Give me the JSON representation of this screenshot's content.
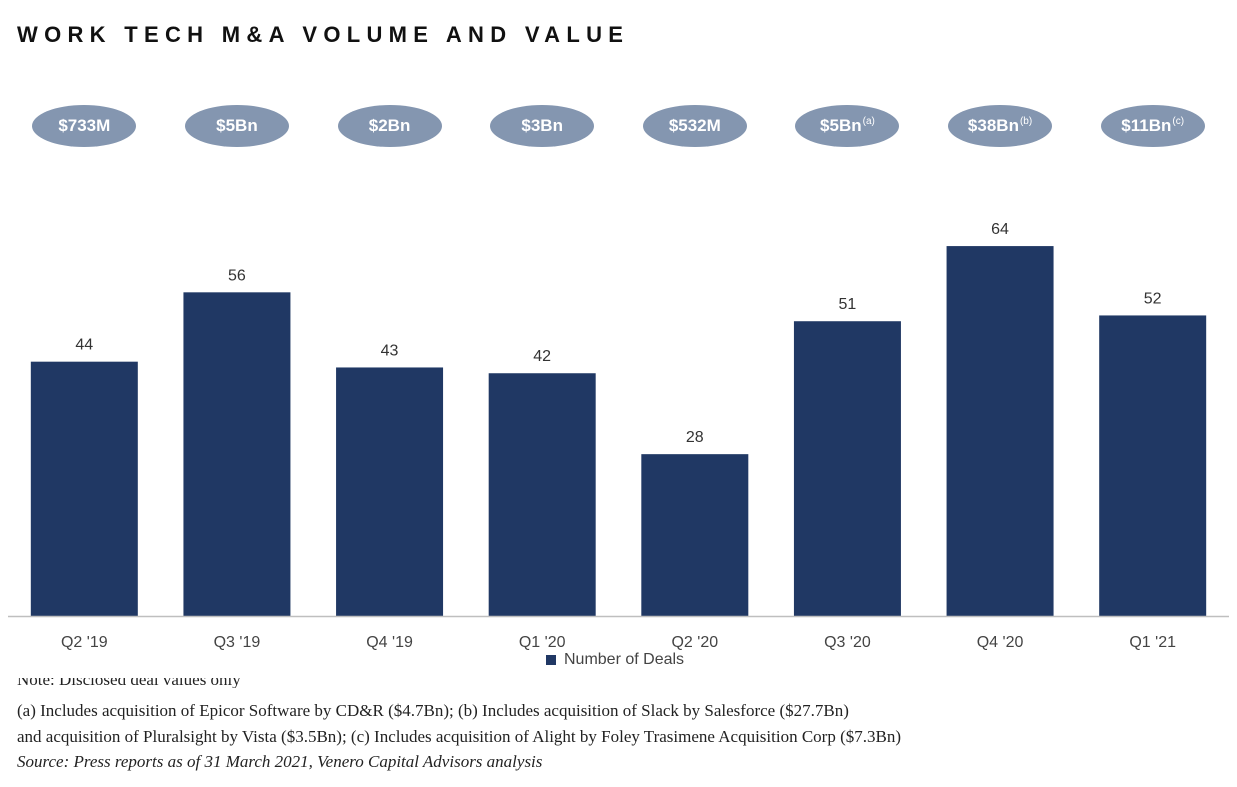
{
  "title": "WORK TECH M&A VOLUME AND VALUE",
  "deal_values": [
    {
      "value": "$733M",
      "note": ""
    },
    {
      "value": "$5Bn",
      "note": ""
    },
    {
      "value": "$2Bn",
      "note": ""
    },
    {
      "value": "$3Bn",
      "note": ""
    },
    {
      "value": "$532M",
      "note": ""
    },
    {
      "value": "$5Bn",
      "note": "(a)"
    },
    {
      "value": "$38Bn",
      "note": "(b)"
    },
    {
      "value": "$11Bn",
      "note": "(c)"
    }
  ],
  "chart_data": {
    "type": "bar",
    "categories": [
      "Q2 '19",
      "Q3 '19",
      "Q4 '19",
      "Q1 '20",
      "Q2 '20",
      "Q3 '20",
      "Q4 '20",
      "Q1 '21"
    ],
    "series": [
      {
        "name": "Number of Deals",
        "values": [
          44,
          56,
          43,
          42,
          28,
          51,
          64,
          52
        ],
        "color": "#203864"
      }
    ],
    "ylim": [
      0,
      70
    ],
    "grid": false,
    "legend": "bottom"
  },
  "legend_label": "Number of Deals",
  "notes": {
    "partial": "Note: Disclosed deal values only",
    "line1": "(a) Includes acquisition of Epicor Software by CD&R ($4.7Bn); (b) Includes acquisition of Slack by Salesforce ($27.7Bn)",
    "line2": "and acquisition of Pluralsight by Vista ($3.5Bn); (c) Includes acquisition of Alight by Foley Trasimene Acquisition Corp ($7.3Bn)",
    "source": "Source: Press reports as of 31 March 2021, Venero Capital Advisors analysis"
  }
}
